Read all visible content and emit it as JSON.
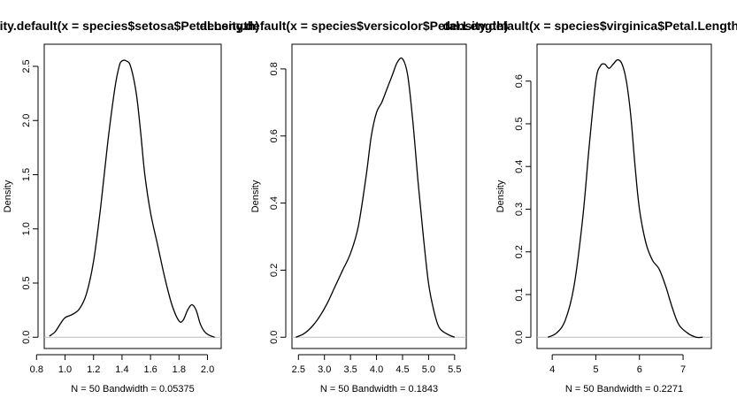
{
  "chart_data": [
    {
      "type": "line",
      "title": "density.default(x = species$setosa$Petal.Length)",
      "xlabel": "N = 50   Bandwidth = 0.05375",
      "ylabel": "Density",
      "xlim": [
        0.9,
        2.05
      ],
      "ylim": [
        0,
        2.6
      ],
      "xticks": [
        "0.8",
        "1.0",
        "1.2",
        "1.4",
        "1.6",
        "1.8",
        "2.0"
      ],
      "xtick_values": [
        0.8,
        1.0,
        1.2,
        1.4,
        1.6,
        1.8,
        2.0
      ],
      "yticks": [
        "0.0",
        "0.5",
        "1.0",
        "1.5",
        "2.0",
        "2.5"
      ],
      "ytick_values": [
        0.0,
        0.5,
        1.0,
        1.5,
        2.0,
        2.5
      ],
      "grid": false,
      "baseline": 0,
      "series": [
        {
          "x": [
            0.89,
            0.93,
            0.97,
            1.0,
            1.05,
            1.1,
            1.15,
            1.2,
            1.25,
            1.3,
            1.35,
            1.38,
            1.4,
            1.43,
            1.46,
            1.5,
            1.53,
            1.56,
            1.6,
            1.65,
            1.7,
            1.75,
            1.8,
            1.83,
            1.86,
            1.89,
            1.92,
            1.95,
            1.98,
            2.01,
            2.05
          ],
          "y": [
            0.01,
            0.05,
            0.13,
            0.18,
            0.21,
            0.26,
            0.4,
            0.7,
            1.2,
            1.8,
            2.3,
            2.5,
            2.55,
            2.55,
            2.5,
            2.25,
            1.9,
            1.5,
            1.15,
            0.85,
            0.55,
            0.3,
            0.15,
            0.16,
            0.25,
            0.3,
            0.25,
            0.12,
            0.05,
            0.02,
            0.0
          ]
        }
      ]
    },
    {
      "type": "line",
      "title": "density.default(x = species$versicolor$Petal.Length)",
      "xlabel": "N = 50   Bandwidth = 0.1843",
      "ylabel": "Density",
      "xlim": [
        2.5,
        5.6
      ],
      "ylim": [
        0,
        0.84
      ],
      "xticks": [
        "2.5",
        "3.0",
        "3.5",
        "4.0",
        "4.5",
        "5.0",
        "5.5"
      ],
      "xtick_values": [
        2.5,
        3.0,
        3.5,
        4.0,
        4.5,
        5.0,
        5.5
      ],
      "yticks": [
        "0.0",
        "0.2",
        "0.4",
        "0.6",
        "0.8"
      ],
      "ytick_values": [
        0.0,
        0.2,
        0.4,
        0.6,
        0.8
      ],
      "grid": false,
      "baseline": 0,
      "series": [
        {
          "x": [
            2.45,
            2.6,
            2.75,
            2.9,
            3.05,
            3.2,
            3.35,
            3.5,
            3.65,
            3.8,
            3.9,
            4.0,
            4.1,
            4.2,
            4.3,
            4.4,
            4.5,
            4.6,
            4.7,
            4.8,
            4.9,
            5.0,
            5.1,
            5.2,
            5.35,
            5.5
          ],
          "y": [
            0.0,
            0.01,
            0.03,
            0.06,
            0.1,
            0.15,
            0.2,
            0.25,
            0.33,
            0.48,
            0.6,
            0.67,
            0.7,
            0.74,
            0.78,
            0.82,
            0.83,
            0.78,
            0.64,
            0.46,
            0.3,
            0.16,
            0.08,
            0.03,
            0.01,
            0.0
          ]
        }
      ]
    },
    {
      "type": "line",
      "title": "density.default(x = species$virginica$Petal.Length)",
      "xlabel": "N = 50   Bandwidth = 0.2271",
      "ylabel": "Density",
      "xlim": [
        3.8,
        7.5
      ],
      "ylim": [
        0,
        0.66
      ],
      "xticks": [
        "4",
        "5",
        "6",
        "7"
      ],
      "xtick_values": [
        4,
        5,
        6,
        7
      ],
      "yticks": [
        "0.0",
        "0.1",
        "0.2",
        "0.3",
        "0.4",
        "0.5",
        "0.6"
      ],
      "ytick_values": [
        0.0,
        0.1,
        0.2,
        0.3,
        0.4,
        0.5,
        0.6
      ],
      "grid": false,
      "baseline": 0,
      "series": [
        {
          "x": [
            3.9,
            4.1,
            4.3,
            4.5,
            4.7,
            4.85,
            5.0,
            5.1,
            5.2,
            5.3,
            5.4,
            5.5,
            5.6,
            5.7,
            5.8,
            5.9,
            6.0,
            6.15,
            6.3,
            6.45,
            6.6,
            6.75,
            6.9,
            7.1,
            7.3,
            7.45
          ],
          "y": [
            0.0,
            0.01,
            0.04,
            0.12,
            0.28,
            0.45,
            0.6,
            0.635,
            0.64,
            0.63,
            0.64,
            0.65,
            0.64,
            0.6,
            0.52,
            0.4,
            0.3,
            0.22,
            0.18,
            0.16,
            0.12,
            0.07,
            0.03,
            0.01,
            0.0,
            0.0
          ]
        }
      ]
    }
  ]
}
